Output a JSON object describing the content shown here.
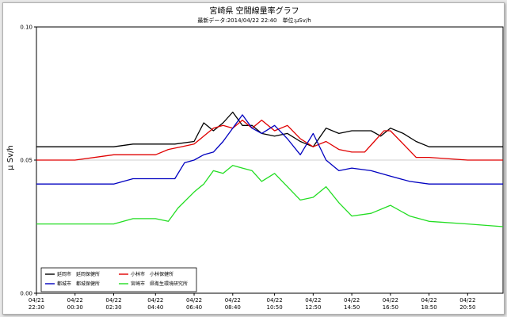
{
  "chart_data": {
    "type": "line",
    "title": "宮崎県 空間線量率グラフ",
    "subtitle": "最新データ:2014/04/22 22:40　単位:μSv/h",
    "ylabel": "μ Sv/h",
    "xlabel": "",
    "ylim": [
      0,
      0.1
    ],
    "yticks": [
      "0.00",
      "0.05",
      "0.10"
    ],
    "ytick_values": [
      0,
      0.05,
      0.1
    ],
    "grid": "horizontal at 0.05",
    "legend_position": "bottom-left",
    "x_start": "04/21 22:30",
    "x_end": "04/22 22:40",
    "xticks": [
      {
        "date": "04/21",
        "time": "22:30"
      },
      {
        "date": "04/22",
        "time": "00:30"
      },
      {
        "date": "04/22",
        "time": "02:30"
      },
      {
        "date": "04/22",
        "time": "04:40"
      },
      {
        "date": "04/22",
        "time": "06:40"
      },
      {
        "date": "04/22",
        "time": "08:40"
      },
      {
        "date": "04/22",
        "time": "10:50"
      },
      {
        "date": "04/22",
        "time": "12:50"
      },
      {
        "date": "04/22",
        "time": "14:50"
      },
      {
        "date": "04/22",
        "time": "16:50"
      },
      {
        "date": "04/22",
        "time": "18:50"
      },
      {
        "date": "04/22",
        "time": "20:50"
      }
    ],
    "series": [
      {
        "name": "延岡市　延岡保健所",
        "color": "#000000",
        "points": [
          [
            "04/21 22:30",
            0.055
          ],
          [
            "04/22 00:30",
            0.055
          ],
          [
            "04/22 02:30",
            0.055
          ],
          [
            "04/22 03:30",
            0.056
          ],
          [
            "04/22 04:40",
            0.056
          ],
          [
            "04/22 05:40",
            0.056
          ],
          [
            "04/22 06:40",
            0.057
          ],
          [
            "04/22 07:10",
            0.064
          ],
          [
            "04/22 07:40",
            0.061
          ],
          [
            "04/22 08:10",
            0.064
          ],
          [
            "04/22 08:40",
            0.068
          ],
          [
            "04/22 09:10",
            0.063
          ],
          [
            "04/22 09:40",
            0.063
          ],
          [
            "04/22 10:10",
            0.06
          ],
          [
            "04/22 10:50",
            0.059
          ],
          [
            "04/22 11:30",
            0.06
          ],
          [
            "04/22 12:10",
            0.057
          ],
          [
            "04/22 12:50",
            0.055
          ],
          [
            "04/22 13:30",
            0.062
          ],
          [
            "04/22 14:10",
            0.06
          ],
          [
            "04/22 14:50",
            0.061
          ],
          [
            "04/22 15:50",
            0.061
          ],
          [
            "04/22 16:20",
            0.059
          ],
          [
            "04/22 16:50",
            0.062
          ],
          [
            "04/22 17:30",
            0.06
          ],
          [
            "04/22 18:10",
            0.057
          ],
          [
            "04/22 18:50",
            0.055
          ],
          [
            "04/22 20:50",
            0.055
          ],
          [
            "04/22 22:40",
            0.055
          ]
        ]
      },
      {
        "name": "小林市　小林保健所",
        "color": "#e00000",
        "points": [
          [
            "04/21 22:30",
            0.05
          ],
          [
            "04/22 00:30",
            0.05
          ],
          [
            "04/22 02:30",
            0.052
          ],
          [
            "04/22 04:40",
            0.052
          ],
          [
            "04/22 05:20",
            0.054
          ],
          [
            "04/22 06:00",
            0.055
          ],
          [
            "04/22 06:40",
            0.056
          ],
          [
            "04/22 07:10",
            0.059
          ],
          [
            "04/22 07:40",
            0.062
          ],
          [
            "04/22 08:10",
            0.063
          ],
          [
            "04/22 08:40",
            0.062
          ],
          [
            "04/22 09:10",
            0.065
          ],
          [
            "04/22 09:40",
            0.062
          ],
          [
            "04/22 10:10",
            0.065
          ],
          [
            "04/22 10:50",
            0.061
          ],
          [
            "04/22 11:30",
            0.063
          ],
          [
            "04/22 12:10",
            0.058
          ],
          [
            "04/22 12:50",
            0.055
          ],
          [
            "04/22 13:30",
            0.057
          ],
          [
            "04/22 14:10",
            0.054
          ],
          [
            "04/22 14:50",
            0.053
          ],
          [
            "04/22 15:30",
            0.053
          ],
          [
            "04/22 16:00",
            0.057
          ],
          [
            "04/22 16:30",
            0.061
          ],
          [
            "04/22 16:50",
            0.061
          ],
          [
            "04/22 17:30",
            0.056
          ],
          [
            "04/22 18:10",
            0.051
          ],
          [
            "04/22 18:50",
            0.051
          ],
          [
            "04/22 20:50",
            0.05
          ],
          [
            "04/22 22:40",
            0.05
          ]
        ]
      },
      {
        "name": "都城市　都城保健所",
        "color": "#0000c0",
        "points": [
          [
            "04/21 22:30",
            0.041
          ],
          [
            "04/22 00:30",
            0.041
          ],
          [
            "04/22 02:30",
            0.041
          ],
          [
            "04/22 03:30",
            0.043
          ],
          [
            "04/22 04:40",
            0.043
          ],
          [
            "04/22 05:40",
            0.043
          ],
          [
            "04/22 06:10",
            0.049
          ],
          [
            "04/22 06:40",
            0.05
          ],
          [
            "04/22 07:10",
            0.052
          ],
          [
            "04/22 07:40",
            0.053
          ],
          [
            "04/22 08:10",
            0.057
          ],
          [
            "04/22 08:40",
            0.062
          ],
          [
            "04/22 09:10",
            0.067
          ],
          [
            "04/22 09:40",
            0.062
          ],
          [
            "04/22 10:10",
            0.06
          ],
          [
            "04/22 10:50",
            0.063
          ],
          [
            "04/22 11:30",
            0.058
          ],
          [
            "04/22 12:10",
            0.052
          ],
          [
            "04/22 12:50",
            0.06
          ],
          [
            "04/22 13:30",
            0.05
          ],
          [
            "04/22 14:10",
            0.046
          ],
          [
            "04/22 14:50",
            0.047
          ],
          [
            "04/22 15:50",
            0.046
          ],
          [
            "04/22 16:50",
            0.044
          ],
          [
            "04/22 17:50",
            0.042
          ],
          [
            "04/22 18:50",
            0.041
          ],
          [
            "04/22 20:50",
            0.041
          ],
          [
            "04/22 22:40",
            0.041
          ]
        ]
      },
      {
        "name": "宮崎市　県衛生環境研究所",
        "color": "#22dd22",
        "points": [
          [
            "04/21 22:30",
            0.026
          ],
          [
            "04/22 00:30",
            0.026
          ],
          [
            "04/22 02:30",
            0.026
          ],
          [
            "04/22 03:30",
            0.028
          ],
          [
            "04/22 04:40",
            0.028
          ],
          [
            "04/22 05:20",
            0.027
          ],
          [
            "04/22 05:50",
            0.032
          ],
          [
            "04/22 06:40",
            0.038
          ],
          [
            "04/22 07:10",
            0.041
          ],
          [
            "04/22 07:40",
            0.046
          ],
          [
            "04/22 08:10",
            0.045
          ],
          [
            "04/22 08:40",
            0.048
          ],
          [
            "04/22 09:10",
            0.047
          ],
          [
            "04/22 09:40",
            0.046
          ],
          [
            "04/22 10:10",
            0.042
          ],
          [
            "04/22 10:50",
            0.045
          ],
          [
            "04/22 11:30",
            0.04
          ],
          [
            "04/22 12:10",
            0.035
          ],
          [
            "04/22 12:50",
            0.036
          ],
          [
            "04/22 13:30",
            0.04
          ],
          [
            "04/22 14:10",
            0.034
          ],
          [
            "04/22 14:50",
            0.029
          ],
          [
            "04/22 15:50",
            0.03
          ],
          [
            "04/22 16:50",
            0.033
          ],
          [
            "04/22 17:50",
            0.029
          ],
          [
            "04/22 18:50",
            0.027
          ],
          [
            "04/22 20:50",
            0.026
          ],
          [
            "04/22 22:40",
            0.025
          ]
        ]
      }
    ]
  }
}
